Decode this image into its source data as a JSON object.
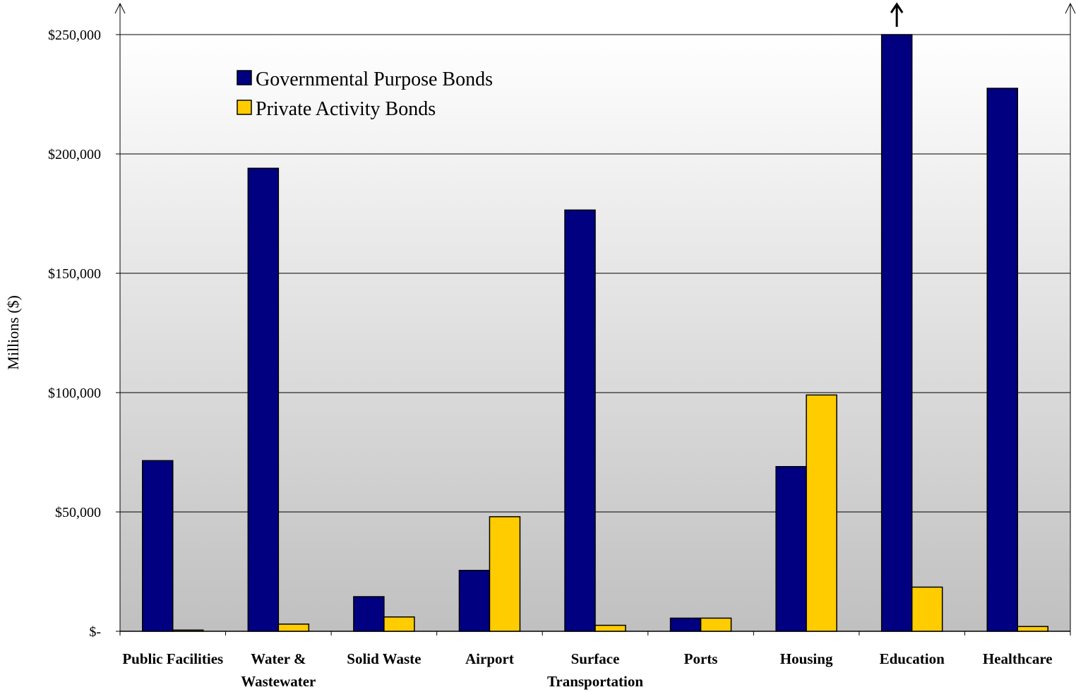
{
  "chart_data": {
    "type": "bar",
    "categories": [
      "Public Facilities",
      "Water & Wastewater",
      "Solid Waste",
      "Airport",
      "Surface Transportation",
      "Ports",
      "Housing",
      "Education",
      "Healthcare"
    ],
    "category_lines": [
      [
        "Public Facilities"
      ],
      [
        "Water &",
        "Wastewater"
      ],
      [
        "Solid Waste"
      ],
      [
        "Airport"
      ],
      [
        "Surface",
        "Transportation"
      ],
      [
        "Ports"
      ],
      [
        "Housing"
      ],
      [
        "Education"
      ],
      [
        "Healthcare"
      ]
    ],
    "series": [
      {
        "name": "Governmental Purpose Bonds",
        "color": "#000080",
        "values": [
          71500,
          194000,
          14500,
          25500,
          176500,
          5500,
          69000,
          251000,
          227500
        ],
        "truncated_at_index": 7
      },
      {
        "name": "Private Activity Bonds",
        "color": "#ffcc00",
        "values": [
          500,
          3000,
          6000,
          48000,
          2500,
          5500,
          99000,
          18500,
          2000
        ]
      }
    ],
    "ylabel": "Millions ($)",
    "ylim": [
      0,
      250000
    ],
    "yticks": [
      0,
      50000,
      100000,
      150000,
      200000,
      250000
    ],
    "ytick_labels": [
      "$-",
      "$50,000",
      "$100,000",
      "$150,000",
      "$200,000",
      "$250,000"
    ],
    "grid": true,
    "legend_position": "top-left",
    "background": "vertical gradient white to gray"
  }
}
